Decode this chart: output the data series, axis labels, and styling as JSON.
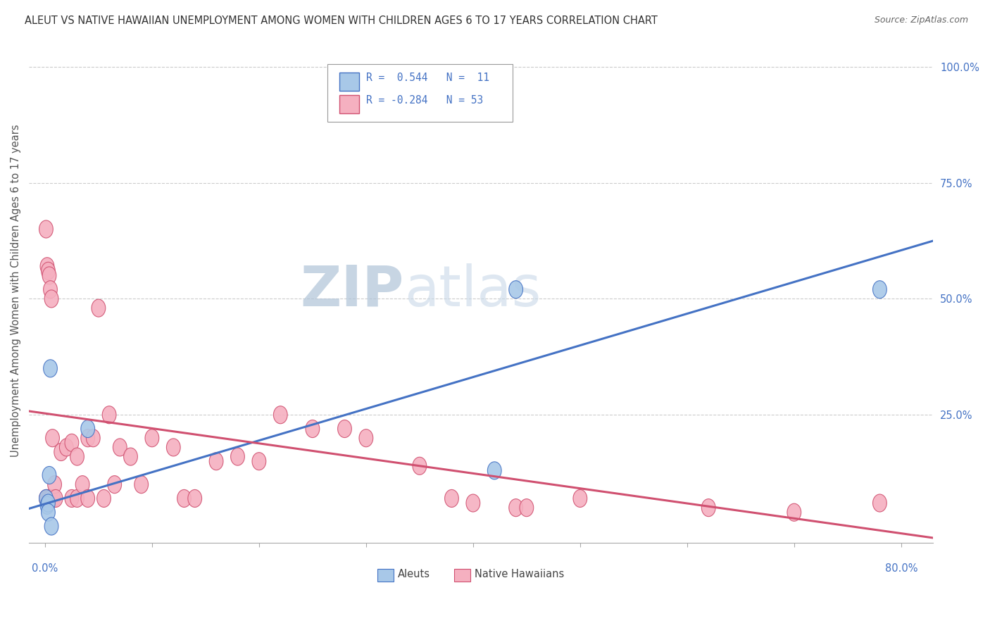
{
  "title": "ALEUT VS NATIVE HAWAIIAN UNEMPLOYMENT AMONG WOMEN WITH CHILDREN AGES 6 TO 17 YEARS CORRELATION CHART",
  "source": "Source: ZipAtlas.com",
  "ylabel": "Unemployment Among Women with Children Ages 6 to 17 years",
  "right_yticks": [
    "100.0%",
    "75.0%",
    "50.0%",
    "25.0%"
  ],
  "right_ytick_vals": [
    1.0,
    0.75,
    0.5,
    0.25
  ],
  "aleuts_R": "0.544",
  "aleuts_N": "11",
  "hawaiians_R": "-0.284",
  "hawaiians_N": "53",
  "aleuts_color": "#a8c8e8",
  "hawaiians_color": "#f5b0c0",
  "aleuts_line_color": "#4472c4",
  "hawaiians_line_color": "#d05070",
  "right_axis_color": "#4472c4",
  "legend_R_color": "#4472c4",
  "grid_color": "#cccccc",
  "title_color": "#333333",
  "source_color": "#666666",
  "watermark_color": "#ccd8e8",
  "xmin": -0.015,
  "xmax": 0.83,
  "ymin": -0.025,
  "ymax": 1.06,
  "blue_line_x0": -0.015,
  "blue_line_y0": 0.048,
  "blue_line_x1": 0.83,
  "blue_line_y1": 0.625,
  "pink_line_x0": -0.015,
  "pink_line_y0": 0.258,
  "pink_line_x1": 0.83,
  "pink_line_y1": -0.015,
  "aleuts_x": [
    0.001,
    0.002,
    0.003,
    0.003,
    0.004,
    0.005,
    0.006,
    0.04,
    0.42,
    0.44,
    0.78
  ],
  "aleuts_y": [
    0.07,
    0.055,
    0.06,
    0.04,
    0.12,
    0.35,
    0.01,
    0.22,
    0.13,
    0.52,
    0.52
  ],
  "hawaiians_x": [
    0.001,
    0.001,
    0.002,
    0.002,
    0.003,
    0.003,
    0.004,
    0.004,
    0.005,
    0.005,
    0.006,
    0.006,
    0.007,
    0.008,
    0.009,
    0.01,
    0.015,
    0.02,
    0.025,
    0.025,
    0.03,
    0.03,
    0.035,
    0.04,
    0.04,
    0.045,
    0.05,
    0.055,
    0.06,
    0.065,
    0.07,
    0.08,
    0.09,
    0.1,
    0.12,
    0.13,
    0.14,
    0.16,
    0.18,
    0.2,
    0.22,
    0.25,
    0.28,
    0.3,
    0.35,
    0.38,
    0.4,
    0.44,
    0.45,
    0.5,
    0.62,
    0.7,
    0.78
  ],
  "hawaiians_y": [
    0.65,
    0.07,
    0.57,
    0.07,
    0.56,
    0.07,
    0.55,
    0.07,
    0.52,
    0.07,
    0.5,
    0.07,
    0.2,
    0.07,
    0.1,
    0.07,
    0.17,
    0.18,
    0.19,
    0.07,
    0.16,
    0.07,
    0.1,
    0.2,
    0.07,
    0.2,
    0.48,
    0.07,
    0.25,
    0.1,
    0.18,
    0.16,
    0.1,
    0.2,
    0.18,
    0.07,
    0.07,
    0.15,
    0.16,
    0.15,
    0.25,
    0.22,
    0.22,
    0.2,
    0.14,
    0.07,
    0.06,
    0.05,
    0.05,
    0.07,
    0.05,
    0.04,
    0.06
  ]
}
